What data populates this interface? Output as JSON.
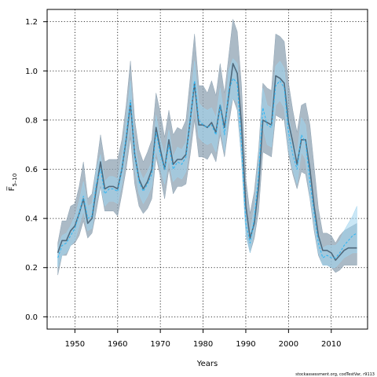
{
  "chart_data": {
    "type": "line",
    "title": "",
    "xlabel": "Years",
    "ylabel": "F̅",
    "ylabel_subscript": "5–10",
    "credit": "stockassessment.org, codTestVar, r9113",
    "xlim": [
      1943.5,
      2018.5
    ],
    "ylim": [
      -0.05,
      1.25
    ],
    "x_ticks": [
      1950,
      1960,
      1970,
      1980,
      1990,
      2000,
      2010
    ],
    "y_ticks": [
      0.0,
      0.2,
      0.4,
      0.6,
      0.8,
      1.0,
      1.2
    ],
    "y_tick_labels": [
      "0.0",
      "0.2",
      "0.4",
      "0.6",
      "0.8",
      "1.0",
      "1.2"
    ],
    "grid": true,
    "colors": {
      "band_gray": "#8fa3b3",
      "line_gray": "#50697c",
      "band_blue": "#9fd4ee",
      "line_blue": "#29b6f6"
    },
    "series": [
      {
        "style": "gray",
        "x": [
          1946,
          1947,
          1948,
          1949,
          1950,
          1951,
          1952,
          1953,
          1954,
          1955,
          1956,
          1957,
          1958,
          1959,
          1960,
          1961,
          1962,
          1963,
          1964,
          1965,
          1966,
          1967,
          1968,
          1969,
          1970,
          1971,
          1972,
          1973,
          1974,
          1975,
          1976,
          1977,
          1978,
          1979,
          1980,
          1981,
          1982,
          1983,
          1984,
          1985,
          1986,
          1987,
          1988,
          1989,
          1990,
          1991,
          1992,
          1993,
          1994,
          1995,
          1996,
          1997,
          1998,
          1999,
          2000,
          2001,
          2002,
          2003,
          2004,
          2005,
          2006,
          2007,
          2008,
          2009,
          2010,
          2011,
          2012,
          2013,
          2014,
          2015,
          2016
        ],
        "mid": [
          0.26,
          0.31,
          0.31,
          0.35,
          0.37,
          0.42,
          0.48,
          0.38,
          0.4,
          0.52,
          0.63,
          0.52,
          0.53,
          0.53,
          0.52,
          0.6,
          0.72,
          0.87,
          0.66,
          0.56,
          0.52,
          0.55,
          0.6,
          0.77,
          0.68,
          0.6,
          0.72,
          0.62,
          0.64,
          0.64,
          0.66,
          0.8,
          0.95,
          0.78,
          0.78,
          0.77,
          0.79,
          0.75,
          0.86,
          0.77,
          0.9,
          1.03,
          0.99,
          0.78,
          0.45,
          0.32,
          0.38,
          0.53,
          0.8,
          0.79,
          0.78,
          0.98,
          0.97,
          0.95,
          0.79,
          0.71,
          0.62,
          0.72,
          0.72,
          0.6,
          0.45,
          0.33,
          0.27,
          0.27,
          0.26,
          0.23,
          0.25,
          0.27,
          0.28,
          0.28,
          0.28
        ],
        "lo": [
          0.17,
          0.25,
          0.25,
          0.29,
          0.3,
          0.33,
          0.39,
          0.32,
          0.34,
          0.43,
          0.53,
          0.43,
          0.43,
          0.43,
          0.41,
          0.5,
          0.6,
          0.73,
          0.54,
          0.45,
          0.42,
          0.44,
          0.48,
          0.65,
          0.57,
          0.48,
          0.6,
          0.5,
          0.53,
          0.53,
          0.54,
          0.66,
          0.8,
          0.65,
          0.65,
          0.64,
          0.67,
          0.63,
          0.74,
          0.65,
          0.78,
          0.89,
          0.84,
          0.64,
          0.34,
          0.26,
          0.32,
          0.43,
          0.67,
          0.66,
          0.65,
          0.82,
          0.81,
          0.8,
          0.66,
          0.58,
          0.52,
          0.59,
          0.58,
          0.48,
          0.35,
          0.25,
          0.21,
          0.21,
          0.2,
          0.18,
          0.19,
          0.21,
          0.21,
          0.21,
          0.21
        ],
        "hi": [
          0.3,
          0.39,
          0.39,
          0.45,
          0.46,
          0.53,
          0.63,
          0.48,
          0.5,
          0.61,
          0.74,
          0.63,
          0.64,
          0.64,
          0.64,
          0.72,
          0.86,
          1.04,
          0.8,
          0.68,
          0.63,
          0.67,
          0.72,
          0.91,
          0.83,
          0.73,
          0.84,
          0.74,
          0.77,
          0.76,
          0.8,
          0.97,
          1.15,
          0.94,
          0.94,
          0.91,
          0.96,
          0.9,
          1.03,
          0.91,
          1.06,
          1.21,
          1.16,
          0.94,
          0.56,
          0.42,
          0.51,
          0.68,
          0.95,
          0.93,
          0.92,
          1.15,
          1.14,
          1.12,
          0.95,
          0.84,
          0.75,
          0.86,
          0.87,
          0.78,
          0.61,
          0.44,
          0.34,
          0.34,
          0.33,
          0.3,
          0.33,
          0.35,
          0.36,
          0.37,
          0.38
        ]
      },
      {
        "style": "blue",
        "x": [
          1946,
          1947,
          1948,
          1949,
          1950,
          1951,
          1952,
          1953,
          1954,
          1955,
          1956,
          1957,
          1958,
          1959,
          1960,
          1961,
          1962,
          1963,
          1964,
          1965,
          1966,
          1967,
          1968,
          1969,
          1970,
          1971,
          1972,
          1973,
          1974,
          1975,
          1976,
          1977,
          1978,
          1979,
          1980,
          1981,
          1982,
          1983,
          1984,
          1985,
          1986,
          1987,
          1988,
          1989,
          1990,
          1991,
          1992,
          1993,
          1994,
          1995,
          1996,
          1997,
          1998,
          1999,
          2000,
          2001,
          2002,
          2003,
          2004,
          2005,
          2006,
          2007,
          2008,
          2009,
          2010,
          2011,
          2012,
          2013,
          2014,
          2015,
          2016
        ],
        "mid": [
          0.24,
          0.29,
          0.3,
          0.33,
          0.36,
          0.42,
          0.49,
          0.4,
          0.41,
          0.54,
          0.6,
          0.5,
          0.52,
          0.52,
          0.51,
          0.6,
          0.73,
          0.88,
          0.66,
          0.55,
          0.51,
          0.54,
          0.58,
          0.75,
          0.66,
          0.6,
          0.7,
          0.6,
          0.63,
          0.62,
          0.65,
          0.8,
          0.96,
          0.8,
          0.78,
          0.77,
          0.78,
          0.74,
          0.86,
          0.74,
          0.92,
          0.97,
          0.95,
          0.7,
          0.38,
          0.3,
          0.4,
          0.58,
          0.85,
          0.78,
          0.77,
          0.94,
          0.96,
          0.93,
          0.75,
          0.66,
          0.6,
          0.74,
          0.71,
          0.55,
          0.42,
          0.3,
          0.24,
          0.25,
          0.24,
          0.24,
          0.26,
          0.29,
          0.31,
          0.33,
          0.34
        ],
        "lo": [
          0.2,
          0.25,
          0.26,
          0.29,
          0.31,
          0.37,
          0.43,
          0.35,
          0.36,
          0.48,
          0.54,
          0.45,
          0.47,
          0.47,
          0.46,
          0.54,
          0.66,
          0.8,
          0.6,
          0.5,
          0.46,
          0.49,
          0.53,
          0.68,
          0.6,
          0.54,
          0.64,
          0.55,
          0.57,
          0.56,
          0.59,
          0.73,
          0.88,
          0.73,
          0.71,
          0.7,
          0.71,
          0.67,
          0.79,
          0.67,
          0.84,
          0.89,
          0.87,
          0.63,
          0.33,
          0.26,
          0.35,
          0.52,
          0.77,
          0.7,
          0.69,
          0.86,
          0.88,
          0.85,
          0.68,
          0.6,
          0.54,
          0.67,
          0.64,
          0.49,
          0.37,
          0.26,
          0.21,
          0.21,
          0.2,
          0.2,
          0.22,
          0.24,
          0.25,
          0.26,
          0.26
        ],
        "hi": [
          0.28,
          0.33,
          0.34,
          0.37,
          0.41,
          0.47,
          0.55,
          0.45,
          0.46,
          0.6,
          0.66,
          0.55,
          0.57,
          0.57,
          0.56,
          0.66,
          0.8,
          0.96,
          0.72,
          0.6,
          0.56,
          0.59,
          0.63,
          0.82,
          0.72,
          0.66,
          0.76,
          0.65,
          0.69,
          0.68,
          0.71,
          0.87,
          1.04,
          0.87,
          0.85,
          0.84,
          0.85,
          0.81,
          0.93,
          0.81,
          1.0,
          1.05,
          1.03,
          0.77,
          0.43,
          0.34,
          0.45,
          0.64,
          0.93,
          0.86,
          0.85,
          1.02,
          1.04,
          1.01,
          0.82,
          0.72,
          0.66,
          0.81,
          0.78,
          0.61,
          0.47,
          0.34,
          0.28,
          0.29,
          0.29,
          0.29,
          0.31,
          0.35,
          0.38,
          0.41,
          0.45
        ]
      }
    ]
  }
}
